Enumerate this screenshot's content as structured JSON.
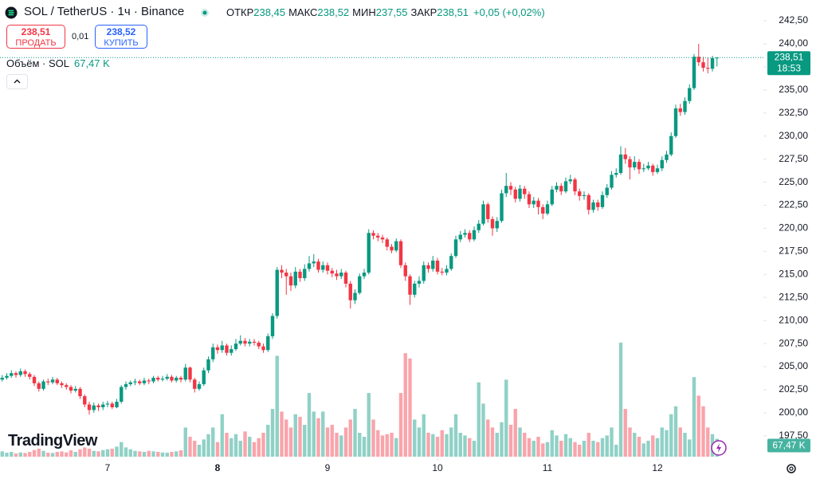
{
  "header": {
    "symbol": "SOL / TetherUS · 1ч · Binance",
    "ohlc": [
      {
        "label": "ОТКР",
        "value": "238,45"
      },
      {
        "label": "МАКС",
        "value": "238,52"
      },
      {
        "label": "МИН",
        "value": "237,55"
      },
      {
        "label": "ЗАКР",
        "value": "238,51"
      }
    ],
    "change": "+0,05 (+0,02%)",
    "sell": {
      "price": "238,51",
      "label": "ПРОДАТЬ"
    },
    "spread": "0,01",
    "buy": {
      "price": "238,52",
      "label": "КУПИТЬ"
    },
    "volume_label": "Объём · SOL",
    "volume_value": "67,47 K"
  },
  "watermark": "TradingView",
  "chart_data": {
    "type": "candlestick",
    "x": [
      -23,
      -22,
      -21,
      -20,
      -19,
      -18,
      -17,
      -16,
      -15,
      -14,
      -13,
      -12,
      -11,
      -10,
      -9,
      -8,
      -7,
      -6,
      -5,
      -4,
      -3,
      -2,
      -1,
      0,
      1,
      2,
      3,
      4,
      5,
      6,
      7,
      8,
      9,
      10,
      11,
      12,
      13,
      14,
      15,
      16,
      17,
      18,
      19,
      20,
      21,
      22,
      23,
      24,
      25,
      26,
      27,
      28,
      29,
      30,
      31,
      32,
      33,
      34,
      35,
      36,
      37,
      38,
      39,
      40,
      41,
      42,
      43,
      44,
      45,
      46,
      47,
      48,
      49,
      50,
      51,
      52,
      53,
      54,
      55,
      56,
      57,
      58,
      59,
      60,
      61,
      62,
      63,
      64,
      65,
      66,
      67,
      68,
      69,
      70,
      71,
      72,
      73,
      74,
      75,
      76,
      77,
      78,
      79,
      80,
      81,
      82,
      83,
      84,
      85,
      86,
      87,
      88,
      89,
      90,
      91,
      92,
      93,
      94,
      95,
      96,
      97,
      98,
      99,
      100,
      101,
      102,
      103,
      104,
      105,
      106,
      107,
      108,
      109,
      110,
      111,
      112,
      113,
      114,
      115,
      116,
      117,
      118,
      119,
      120,
      121,
      122,
      123,
      124,
      125,
      126,
      127,
      128,
      129,
      130,
      131,
      132,
      133
    ],
    "open": [
      203.6,
      203.8,
      204.0,
      204.3,
      204.1,
      204.5,
      204.2,
      203.9,
      203.2,
      202.6,
      203.4,
      203.3,
      203.6,
      203.2,
      203.0,
      202.8,
      202.4,
      202.6,
      201.8,
      200.9,
      200.3,
      200.8,
      200.6,
      200.9,
      201.0,
      200.6,
      201.2,
      202.8,
      203.1,
      203.3,
      203.4,
      203.2,
      203.5,
      203.4,
      203.8,
      203.6,
      203.7,
      203.9,
      203.5,
      203.8,
      203.6,
      204.9,
      203.6,
      202.6,
      203.1,
      204.6,
      205.8,
      207.1,
      206.8,
      207.3,
      206.5,
      206.9,
      207.5,
      207.8,
      207.5,
      207.7,
      207.6,
      207.2,
      206.8,
      208.3,
      210.5,
      215.5,
      215.2,
      214.8,
      213.8,
      215.3,
      214.6,
      215.6,
      216.2,
      216.4,
      215.5,
      216.0,
      215.4,
      215.1,
      214.8,
      215.2,
      214.0,
      212.2,
      213.0,
      214.8,
      215.2,
      219.5,
      219.2,
      219.0,
      218.8,
      218.0,
      217.6,
      218.6,
      216.0,
      214.8,
      212.8,
      214.0,
      214.3,
      216.0,
      215.6,
      216.5,
      215.3,
      215.2,
      215.6,
      217.0,
      218.8,
      219.3,
      219.5,
      218.8,
      219.8,
      220.5,
      222.6,
      221.0,
      220.0,
      220.8,
      223.8,
      224.6,
      224.2,
      223.2,
      224.3,
      223.7,
      222.6,
      223.0,
      222.3,
      221.6,
      222.6,
      224.2,
      224.6,
      224.0,
      225.1,
      225.3,
      224.0,
      223.5,
      223.6,
      222.0,
      222.8,
      222.3,
      223.6,
      224.4,
      225.8,
      226.0,
      228.0,
      227.5,
      226.6,
      227.2,
      226.4,
      226.5,
      226.8,
      226.1,
      226.5,
      227.4,
      228.0,
      230.0,
      233.0,
      232.6,
      233.8,
      235.2,
      238.6,
      238.0,
      237.4,
      237.3,
      238.45
    ],
    "high": [
      204.1,
      204.3,
      204.6,
      204.5,
      204.8,
      204.7,
      204.4,
      204.1,
      203.4,
      203.6,
      203.7,
      203.9,
      203.8,
      203.4,
      203.2,
      203.0,
      202.9,
      202.8,
      202.0,
      201.2,
      201.1,
      201.0,
      201.2,
      201.3,
      201.2,
      201.5,
      203.0,
      203.4,
      203.5,
      203.7,
      203.6,
      203.8,
      203.7,
      204.0,
      204.0,
      204.0,
      204.2,
      204.1,
      204.0,
      204.0,
      205.3,
      205.0,
      203.8,
      203.4,
      204.9,
      206.1,
      207.5,
      207.4,
      207.8,
      207.5,
      207.3,
      208.0,
      208.4,
      208.1,
      208.0,
      208.0,
      207.8,
      207.5,
      208.6,
      210.8,
      215.8,
      216.0,
      215.6,
      215.2,
      215.8,
      215.6,
      216.1,
      217.0,
      217.2,
      216.7,
      216.4,
      216.3,
      215.7,
      215.5,
      215.6,
      215.4,
      214.3,
      213.4,
      215.1,
      215.6,
      219.9,
      219.8,
      219.5,
      219.3,
      219.0,
      218.3,
      218.9,
      218.8,
      216.3,
      215.0,
      214.3,
      214.8,
      216.4,
      216.3,
      217.0,
      216.8,
      215.7,
      216.0,
      217.3,
      219.2,
      219.7,
      219.9,
      219.8,
      220.2,
      220.9,
      223.0,
      222.8,
      221.3,
      221.2,
      224.2,
      226.0,
      225.0,
      224.5,
      224.7,
      224.6,
      224.0,
      223.4,
      223.3,
      222.6,
      223.0,
      224.6,
      225.0,
      224.9,
      225.5,
      225.8,
      225.5,
      224.3,
      224.0,
      223.8,
      223.1,
      223.1,
      224.0,
      224.8,
      226.2,
      226.5,
      228.9,
      228.7,
      227.8,
      227.8,
      227.5,
      227.0,
      227.2,
      227.0,
      226.9,
      227.8,
      228.4,
      230.4,
      233.4,
      233.5,
      234.2,
      235.6,
      238.9,
      240.0,
      238.6,
      238.5,
      238.7,
      238.52
    ],
    "low": [
      203.4,
      203.6,
      203.8,
      203.8,
      203.9,
      203.9,
      203.6,
      202.9,
      202.3,
      202.4,
      203.0,
      203.1,
      203.0,
      202.7,
      202.5,
      202.1,
      202.2,
      201.5,
      200.6,
      199.8,
      200.0,
      200.2,
      200.3,
      200.6,
      200.4,
      200.5,
      201.0,
      202.5,
      202.9,
      203.0,
      203.0,
      203.0,
      203.1,
      203.2,
      203.4,
      203.4,
      203.5,
      203.3,
      203.3,
      203.3,
      203.4,
      203.3,
      202.2,
      202.4,
      202.9,
      204.3,
      205.5,
      206.4,
      206.5,
      206.2,
      206.2,
      206.7,
      207.3,
      207.2,
      207.2,
      207.3,
      206.9,
      206.5,
      206.6,
      208.0,
      210.2,
      214.6,
      212.8,
      213.2,
      213.5,
      214.2,
      214.3,
      215.3,
      215.8,
      215.2,
      215.2,
      215.0,
      214.7,
      214.4,
      214.5,
      213.6,
      211.3,
      211.8,
      212.8,
      214.5,
      215.0,
      218.8,
      218.6,
      218.4,
      217.6,
      217.3,
      217.4,
      215.7,
      214.3,
      211.7,
      212.5,
      213.6,
      214.0,
      215.2,
      215.3,
      215.0,
      214.9,
      214.9,
      215.4,
      216.8,
      218.5,
      219.0,
      218.5,
      218.6,
      219.5,
      220.3,
      220.6,
      219.2,
      219.6,
      220.6,
      223.4,
      223.6,
      222.8,
      222.9,
      223.2,
      222.2,
      222.2,
      221.5,
      221.0,
      221.4,
      222.4,
      223.9,
      223.6,
      223.8,
      224.8,
      223.6,
      223.0,
      223.1,
      221.5,
      221.7,
      221.9,
      222.1,
      223.3,
      224.2,
      225.5,
      225.8,
      227.0,
      225.3,
      226.3,
      225.9,
      226.1,
      226.3,
      225.7,
      225.9,
      226.2,
      227.1,
      227.8,
      229.8,
      232.2,
      232.3,
      233.5,
      235.0,
      237.6,
      237.0,
      236.8,
      237.0,
      237.55
    ],
    "close": [
      203.8,
      204.0,
      204.3,
      204.1,
      204.5,
      204.2,
      203.9,
      203.2,
      202.6,
      203.4,
      203.3,
      203.6,
      203.2,
      203.0,
      202.8,
      202.4,
      202.6,
      201.8,
      200.9,
      200.3,
      200.8,
      200.6,
      200.9,
      201.0,
      200.6,
      201.2,
      202.8,
      203.1,
      203.3,
      203.4,
      203.2,
      203.5,
      203.4,
      203.8,
      203.6,
      203.7,
      203.9,
      203.5,
      203.8,
      203.6,
      204.9,
      203.6,
      202.6,
      203.1,
      204.6,
      205.8,
      207.1,
      206.8,
      207.3,
      206.5,
      206.9,
      207.5,
      207.8,
      207.5,
      207.7,
      207.6,
      207.2,
      206.8,
      208.3,
      210.5,
      215.5,
      215.2,
      214.8,
      213.8,
      215.3,
      214.6,
      215.6,
      216.2,
      216.4,
      215.5,
      216.0,
      215.4,
      215.1,
      214.8,
      215.2,
      214.0,
      212.2,
      213.0,
      214.8,
      215.2,
      219.5,
      219.2,
      219.0,
      218.8,
      218.0,
      217.6,
      218.6,
      216.0,
      214.8,
      212.8,
      214.0,
      214.3,
      216.0,
      215.6,
      216.5,
      215.3,
      215.2,
      215.6,
      217.0,
      218.8,
      219.3,
      219.5,
      218.8,
      219.8,
      220.5,
      222.6,
      221.0,
      220.0,
      220.8,
      223.8,
      224.6,
      224.2,
      223.2,
      224.3,
      223.7,
      222.6,
      223.0,
      222.3,
      221.6,
      222.6,
      224.2,
      224.6,
      224.0,
      225.1,
      225.3,
      224.0,
      223.5,
      223.6,
      222.0,
      222.8,
      222.3,
      223.6,
      224.4,
      225.8,
      226.0,
      228.0,
      227.5,
      226.6,
      227.2,
      226.4,
      226.5,
      226.8,
      226.1,
      226.5,
      227.4,
      228.0,
      230.0,
      233.0,
      232.6,
      233.8,
      235.2,
      238.6,
      238.0,
      237.4,
      237.3,
      238.45,
      238.51
    ],
    "volume": [
      20,
      15,
      18,
      12,
      16,
      14,
      18,
      25,
      30,
      22,
      15,
      14,
      18,
      20,
      16,
      24,
      18,
      28,
      35,
      30,
      22,
      20,
      25,
      28,
      30,
      38,
      55,
      35,
      28,
      22,
      20,
      18,
      22,
      20,
      18,
      16,
      15,
      18,
      20,
      24,
      110,
      75,
      60,
      45,
      65,
      85,
      110,
      55,
      160,
      90,
      70,
      85,
      60,
      95,
      75,
      55,
      70,
      90,
      120,
      180,
      380,
      170,
      140,
      110,
      160,
      150,
      120,
      240,
      170,
      145,
      170,
      110,
      120,
      90,
      80,
      110,
      140,
      180,
      90,
      75,
      240,
      140,
      100,
      80,
      85,
      90,
      70,
      240,
      390,
      370,
      140,
      110,
      160,
      90,
      85,
      75,
      100,
      85,
      110,
      160,
      90,
      80,
      70,
      60,
      280,
      200,
      140,
      110,
      90,
      130,
      290,
      120,
      180,
      110,
      90,
      70,
      60,
      75,
      50,
      55,
      100,
      80,
      60,
      85,
      70,
      55,
      45,
      60,
      90,
      60,
      55,
      70,
      80,
      110,
      45,
      430,
      180,
      110,
      90,
      75,
      50,
      60,
      80,
      70,
      110,
      100,
      160,
      190,
      110,
      90,
      65,
      300,
      230,
      190,
      110,
      85,
      67.47
    ],
    "xlim": [
      -23.48,
      143.13
    ],
    "xticks": [
      {
        "value": 0,
        "label": "7"
      },
      {
        "value": 24,
        "label": "8"
      },
      {
        "value": 48,
        "label": "9"
      },
      {
        "value": 72,
        "label": "10"
      },
      {
        "value": 96,
        "label": "11"
      },
      {
        "value": 120,
        "label": "12"
      }
    ],
    "ylim": [
      195.07,
      244.75
    ],
    "yticks": [
      {
        "value": 197.5,
        "label": "197,50"
      },
      {
        "value": 200,
        "label": "200,00"
      },
      {
        "value": 202.5,
        "label": "202,50"
      },
      {
        "value": 205,
        "label": "205,00"
      },
      {
        "value": 207.5,
        "label": "207,50"
      },
      {
        "value": 210,
        "label": "210,00"
      },
      {
        "value": 212.5,
        "label": "212,50"
      },
      {
        "value": 215,
        "label": "215,00"
      },
      {
        "value": 217.5,
        "label": "217,50"
      },
      {
        "value": 220,
        "label": "220,00"
      },
      {
        "value": 222.5,
        "label": "222,50"
      },
      {
        "value": 225,
        "label": "225,00"
      },
      {
        "value": 227.5,
        "label": "227,50"
      },
      {
        "value": 230,
        "label": "230,00"
      },
      {
        "value": 232.5,
        "label": "232,50"
      },
      {
        "value": 235,
        "label": "235,00"
      },
      {
        "value": 237.5,
        "label": "237,50"
      },
      {
        "value": 240,
        "label": "240,00"
      },
      {
        "value": 242.5,
        "label": "242,50"
      }
    ],
    "up_color": "#089981",
    "down_color": "#f23645",
    "last_price": {
      "value": 238.51,
      "label": "238,51"
    },
    "countdown": "18:53",
    "last_volume": {
      "value": 67.47,
      "label": "67,47 K"
    }
  }
}
